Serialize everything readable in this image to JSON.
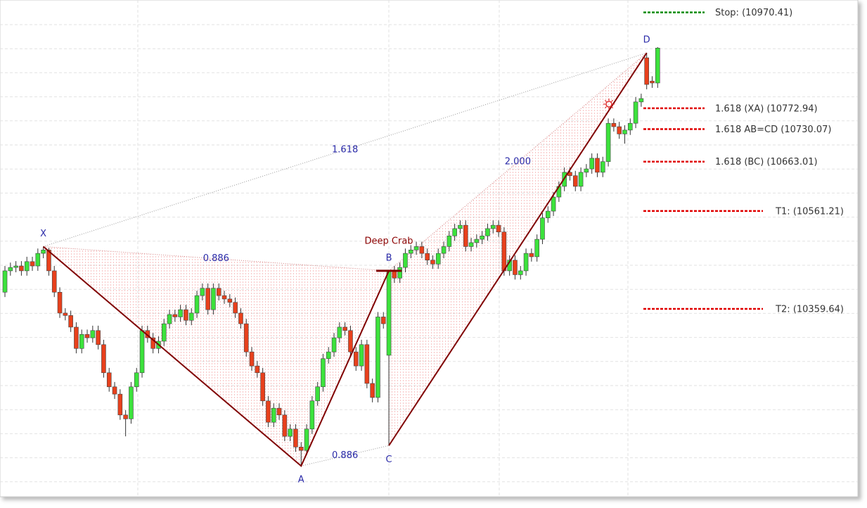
{
  "chart_data": {
    "type": "candlestick",
    "xlim": [
      -0.9,
      155.5
    ],
    "ylim": [
      9974,
      10996
    ],
    "up_color": "#3ce23c",
    "down_color": "#e8401c",
    "open": [
      10394,
      10438,
      10445,
      10448,
      10438,
      10457,
      10448,
      10474,
      10481,
      10438,
      10394,
      10351,
      10346,
      10322,
      10278,
      10307,
      10300,
      10315,
      10286,
      10228,
      10199,
      10184,
      10141,
      10133,
      10199,
      10228,
      10315,
      10300,
      10278,
      10293,
      10329,
      10348,
      10343,
      10358,
      10336,
      10351,
      10387,
      10402,
      10358,
      10402,
      10387,
      10380,
      10373,
      10351,
      10329,
      10271,
      10242,
      10228,
      10170,
      10126,
      10155,
      10141,
      10097,
      10112,
      10075,
      10068,
      10112,
      10170,
      10199,
      10257,
      10271,
      10300,
      10322,
      10315,
      10271,
      10242,
      10286,
      10206,
      10177,
      10343,
      10264,
      10438,
      10423,
      10445,
      10474,
      10481,
      10488,
      10474,
      10460,
      10452,
      10474,
      10488,
      10510,
      10525,
      10532,
      10488,
      10496,
      10503,
      10510,
      10525,
      10532,
      10518,
      10438,
      10460,
      10430,
      10438,
      10474,
      10467,
      10503,
      10547,
      10561,
      10590,
      10612,
      10641,
      10634,
      10612,
      10641,
      10648,
      10670,
      10641,
      10663,
      10742,
      10735,
      10720,
      10728,
      10742,
      10786,
      10877,
      10829,
      10825
    ],
    "high": [
      10448,
      10455,
      10458,
      10458,
      10467,
      10467,
      10484,
      10488,
      10485,
      10448,
      10404,
      10361,
      10356,
      10332,
      10317,
      10317,
      10325,
      10325,
      10296,
      10238,
      10209,
      10194,
      10151,
      10209,
      10238,
      10325,
      10325,
      10310,
      10303,
      10339,
      10358,
      10358,
      10368,
      10368,
      10361,
      10397,
      10412,
      10412,
      10412,
      10412,
      10397,
      10390,
      10383,
      10361,
      10339,
      10281,
      10252,
      10238,
      10180,
      10165,
      10165,
      10151,
      10122,
      10122,
      10085,
      10122,
      10180,
      10209,
      10267,
      10281,
      10310,
      10332,
      10332,
      10325,
      10281,
      10296,
      10296,
      10216,
      10353,
      10353,
      10438,
      10448,
      10455,
      10484,
      10491,
      10498,
      10498,
      10484,
      10470,
      10484,
      10498,
      10520,
      10535,
      10542,
      10542,
      10506,
      10513,
      10520,
      10535,
      10542,
      10542,
      10528,
      10470,
      10470,
      10448,
      10484,
      10484,
      10513,
      10557,
      10571,
      10600,
      10622,
      10651,
      10651,
      10644,
      10651,
      10658,
      10680,
      10680,
      10673,
      10752,
      10752,
      10745,
      10738,
      10752,
      10796,
      10803,
      10887,
      10839,
      10899
    ],
    "low": [
      10384,
      10428,
      10435,
      10428,
      10428,
      10438,
      10438,
      10464,
      10428,
      10384,
      10341,
      10336,
      10312,
      10268,
      10268,
      10290,
      10290,
      10276,
      10218,
      10189,
      10174,
      10131,
      10097,
      10123,
      10189,
      10218,
      10290,
      10268,
      10268,
      10283,
      10319,
      10333,
      10333,
      10326,
      10326,
      10341,
      10377,
      10348,
      10348,
      10377,
      10370,
      10363,
      10341,
      10319,
      10261,
      10232,
      10218,
      10160,
      10116,
      10116,
      10131,
      10087,
      10087,
      10065,
      10036,
      10058,
      10102,
      10160,
      10189,
      10247,
      10261,
      10290,
      10305,
      10261,
      10232,
      10232,
      10196,
      10167,
      10167,
      10319,
      10078,
      10413,
      10413,
      10435,
      10464,
      10471,
      10464,
      10450,
      10442,
      10442,
      10464,
      10478,
      10500,
      10515,
      10478,
      10478,
      10486,
      10493,
      10500,
      10515,
      10508,
      10428,
      10428,
      10420,
      10420,
      10428,
      10457,
      10457,
      10493,
      10537,
      10551,
      10580,
      10602,
      10624,
      10602,
      10602,
      10631,
      10638,
      10631,
      10631,
      10653,
      10725,
      10710,
      10700,
      10718,
      10732,
      10776,
      10812,
      10815,
      10815
    ],
    "close": [
      10438,
      10445,
      10448,
      10438,
      10457,
      10448,
      10474,
      10481,
      10438,
      10394,
      10351,
      10346,
      10322,
      10278,
      10307,
      10300,
      10315,
      10286,
      10228,
      10199,
      10184,
      10141,
      10133,
      10199,
      10228,
      10315,
      10300,
      10278,
      10293,
      10329,
      10348,
      10343,
      10358,
      10336,
      10351,
      10387,
      10402,
      10358,
      10402,
      10387,
      10380,
      10373,
      10351,
      10329,
      10271,
      10242,
      10228,
      10170,
      10126,
      10155,
      10141,
      10097,
      10112,
      10075,
      10068,
      10112,
      10170,
      10199,
      10257,
      10271,
      10300,
      10322,
      10315,
      10271,
      10242,
      10286,
      10206,
      10177,
      10343,
      10329,
      10438,
      10423,
      10445,
      10474,
      10481,
      10488,
      10474,
      10460,
      10452,
      10474,
      10488,
      10510,
      10525,
      10532,
      10488,
      10496,
      10503,
      10510,
      10525,
      10532,
      10518,
      10438,
      10460,
      10430,
      10438,
      10474,
      10467,
      10503,
      10547,
      10561,
      10590,
      10612,
      10641,
      10634,
      10612,
      10641,
      10648,
      10670,
      10641,
      10663,
      10742,
      10735,
      10720,
      10728,
      10742,
      10786,
      10793,
      10822,
      10825,
      10897
    ],
    "pattern": {
      "name": "Deep Crab",
      "points": [
        {
          "label": "X",
          "index": 7,
          "value": 10488
        },
        {
          "label": "A",
          "index": 54,
          "value": 10036
        },
        {
          "label": "B",
          "index": 70,
          "value": 10438
        },
        {
          "label": "C",
          "index": 70,
          "value": 10078
        },
        {
          "label": "D",
          "index": 117,
          "value": 10887
        }
      ],
      "xb_ratio": "0.886",
      "ac_ratio": "0.886",
      "xd_ratio": "1.618",
      "bd_ratio": "2.000"
    },
    "levels": [
      {
        "label": "Stop: (10970.41)",
        "value": 10970.41,
        "color": "#008c00"
      },
      {
        "label": "1.618 (XA) (10772.94)",
        "value": 10772.94,
        "color": "#e00000"
      },
      {
        "label": "1.618 AB=CD (10730.07)",
        "value": 10730.07,
        "color": "#e00000"
      },
      {
        "label": "1.618 (BC) (10663.01)",
        "value": 10663.01,
        "color": "#e00000"
      },
      {
        "label": "T1: (10561.21)",
        "value": 10561.21,
        "color": "#e00000"
      },
      {
        "label": "T2: (10359.64)",
        "value": 10359.64,
        "color": "#e00000"
      }
    ]
  }
}
